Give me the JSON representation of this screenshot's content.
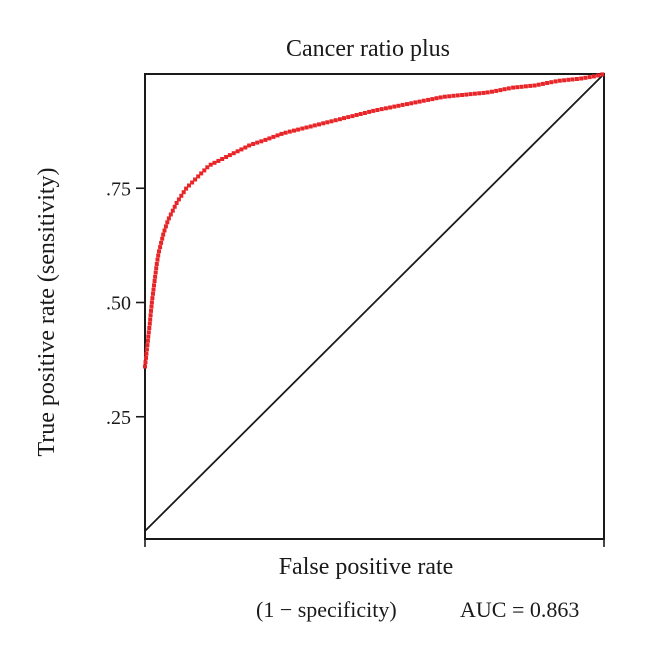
{
  "chart_data": {
    "type": "scatter",
    "title": "Cancer ratio plus",
    "xlabel": "False positive rate",
    "xlabel_note": "(1 − specificity)",
    "ylabel": "True positive rate (sensitivity)",
    "annotation": "AUC = 0.863",
    "xlim": [
      0,
      1
    ],
    "ylim": [
      0,
      1
    ],
    "y_ticks": [
      0.25,
      0.5,
      0.75
    ],
    "y_tick_labels": [
      ".25",
      ".50",
      ".75"
    ],
    "reference_line": {
      "x": [
        0,
        1
      ],
      "y": [
        0,
        1
      ],
      "color": "#1a1a1a"
    },
    "series": [
      {
        "color": "#e8262a",
        "x": [
          0.0,
          0.01,
          0.015,
          0.02,
          0.025,
          0.03,
          0.035,
          0.04,
          0.05,
          0.06,
          0.07,
          0.08,
          0.09,
          0.1,
          0.12,
          0.14,
          0.16,
          0.18,
          0.2,
          0.23,
          0.26,
          0.3,
          0.34,
          0.38,
          0.42,
          0.46,
          0.5,
          0.55,
          0.6,
          0.65,
          0.7,
          0.75,
          0.8,
          0.85,
          0.9,
          0.95,
          0.98,
          1.0
        ],
        "y": [
          0.36,
          0.45,
          0.5,
          0.54,
          0.58,
          0.61,
          0.63,
          0.65,
          0.68,
          0.7,
          0.72,
          0.735,
          0.75,
          0.76,
          0.78,
          0.8,
          0.81,
          0.82,
          0.83,
          0.845,
          0.855,
          0.87,
          0.88,
          0.89,
          0.9,
          0.91,
          0.92,
          0.93,
          0.94,
          0.95,
          0.955,
          0.96,
          0.97,
          0.975,
          0.985,
          0.99,
          0.995,
          1.0
        ]
      }
    ]
  }
}
